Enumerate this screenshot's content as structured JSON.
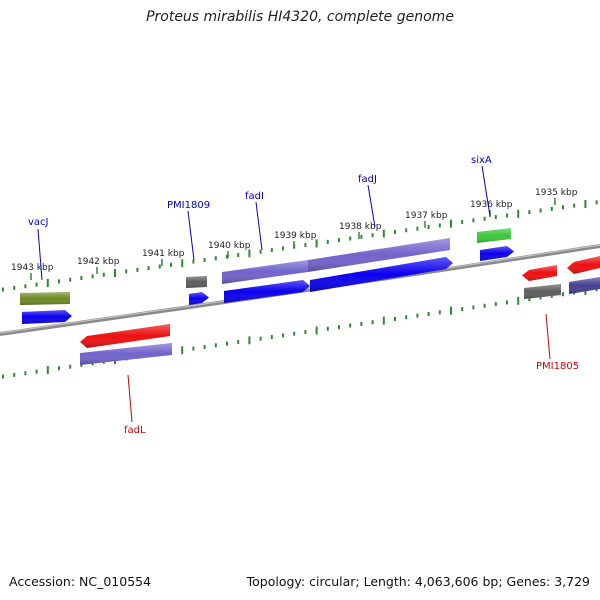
{
  "title": "Proteus mirabilis HI4320, complete genome",
  "footer": {
    "accession": "Accession: NC_010554",
    "summary": "Topology: circular; Length: 4,063,606 bp; Genes: 3,729"
  },
  "colors": {
    "backbone": "#8a8a8a",
    "tick": "#2d8a2d",
    "blue": "#0a00ee",
    "lavender": "#7262cc",
    "red": "#ee0f0f",
    "gray": "#5d5d5d",
    "olive": "#6e8a25",
    "green": "#3cc83c",
    "navy": "#463f94",
    "label_blue": "#0000cc",
    "label_red": "#cc0000"
  },
  "ticks": [
    {
      "label": "1943 kbp"
    },
    {
      "label": "1942 kbp"
    },
    {
      "label": "1941 kbp"
    },
    {
      "label": "1940 kbp"
    },
    {
      "label": "1939 kbp"
    },
    {
      "label": "1938 kbp"
    },
    {
      "label": "1937 kbp"
    },
    {
      "label": "1936 kbp"
    },
    {
      "label": "1935 kbp"
    }
  ],
  "gene_labels": [
    {
      "text": "vacJ",
      "color": "label_blue"
    },
    {
      "text": "PMI1809",
      "color": "label_blue"
    },
    {
      "text": "fadI",
      "color": "label_blue"
    },
    {
      "text": "fadJ",
      "color": "label_blue"
    },
    {
      "text": "sixA",
      "color": "label_blue"
    },
    {
      "text": "fadL",
      "color": "label_red"
    },
    {
      "text": "PMI1805",
      "color": "label_red"
    }
  ]
}
